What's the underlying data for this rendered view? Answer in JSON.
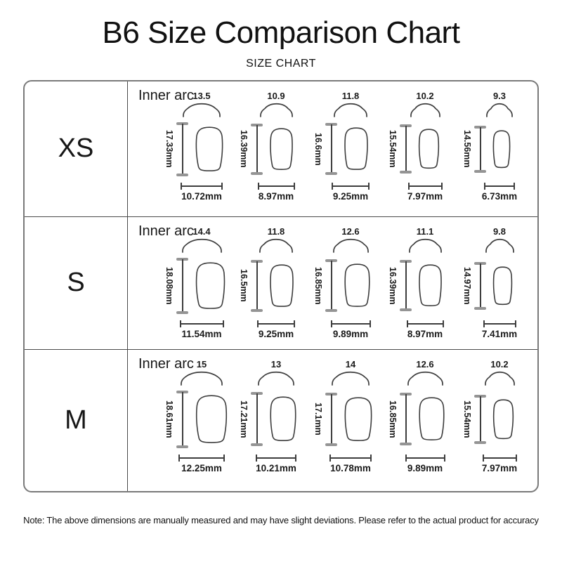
{
  "page": {
    "title": "B6 Size Comparison Chart",
    "subtitle": "SIZE CHART",
    "note": "Note: The above dimensions are manually measured and may have slight deviations. Please refer to the actual product for accuracy"
  },
  "table": {
    "inner_arc_label": "Inner arc",
    "rows": [
      {
        "size": "XS",
        "shapes": [
          {
            "arc": "13.5",
            "height_label": "17.33mm",
            "width_label": "10.72mm",
            "h_mm": 17.33,
            "w_mm": 10.72
          },
          {
            "arc": "10.9",
            "height_label": "16.39mm",
            "width_label": "8.97mm",
            "h_mm": 16.39,
            "w_mm": 8.97
          },
          {
            "arc": "11.8",
            "height_label": "16.6mm",
            "width_label": "9.25mm",
            "h_mm": 16.6,
            "w_mm": 9.25
          },
          {
            "arc": "10.2",
            "height_label": "15.54mm",
            "width_label": "7.97mm",
            "h_mm": 15.54,
            "w_mm": 7.97
          },
          {
            "arc": "9.3",
            "height_label": "14.56mm",
            "width_label": "6.73mm",
            "h_mm": 14.56,
            "w_mm": 6.73
          }
        ]
      },
      {
        "size": "S",
        "shapes": [
          {
            "arc": "14.4",
            "height_label": "18.08mm",
            "width_label": "11.54mm",
            "h_mm": 18.08,
            "w_mm": 11.54
          },
          {
            "arc": "11.8",
            "height_label": "16.5mm",
            "width_label": "9.25mm",
            "h_mm": 16.5,
            "w_mm": 9.25
          },
          {
            "arc": "12.6",
            "height_label": "16.85mm",
            "width_label": "9.89mm",
            "h_mm": 16.85,
            "w_mm": 9.89
          },
          {
            "arc": "11.1",
            "height_label": "16.39mm",
            "width_label": "8.97mm",
            "h_mm": 16.39,
            "w_mm": 8.97
          },
          {
            "arc": "9.8",
            "height_label": "14.97mm",
            "width_label": "7.41mm",
            "h_mm": 14.97,
            "w_mm": 7.41
          }
        ]
      },
      {
        "size": "M",
        "shapes": [
          {
            "arc": "15",
            "height_label": "18.61mm",
            "width_label": "12.25mm",
            "h_mm": 18.61,
            "w_mm": 12.25
          },
          {
            "arc": "13",
            "height_label": "17.21mm",
            "width_label": "10.21mm",
            "h_mm": 17.21,
            "w_mm": 10.21
          },
          {
            "arc": "14",
            "height_label": "17.1mm",
            "width_label": "10.78mm",
            "h_mm": 17.1,
            "w_mm": 10.78
          },
          {
            "arc": "12.6",
            "height_label": "16.85mm",
            "width_label": "9.89mm",
            "h_mm": 16.85,
            "w_mm": 9.89
          },
          {
            "arc": "10.2",
            "height_label": "15.54mm",
            "width_label": "7.97mm",
            "h_mm": 15.54,
            "w_mm": 7.97
          }
        ]
      }
    ]
  },
  "colors": {
    "outline_stroke": "#3d3d3d",
    "ruler_cap": "#949494",
    "outer_border": "#7a7a7a",
    "inner_border": "#4a4a4a",
    "background": "#ffffff"
  }
}
